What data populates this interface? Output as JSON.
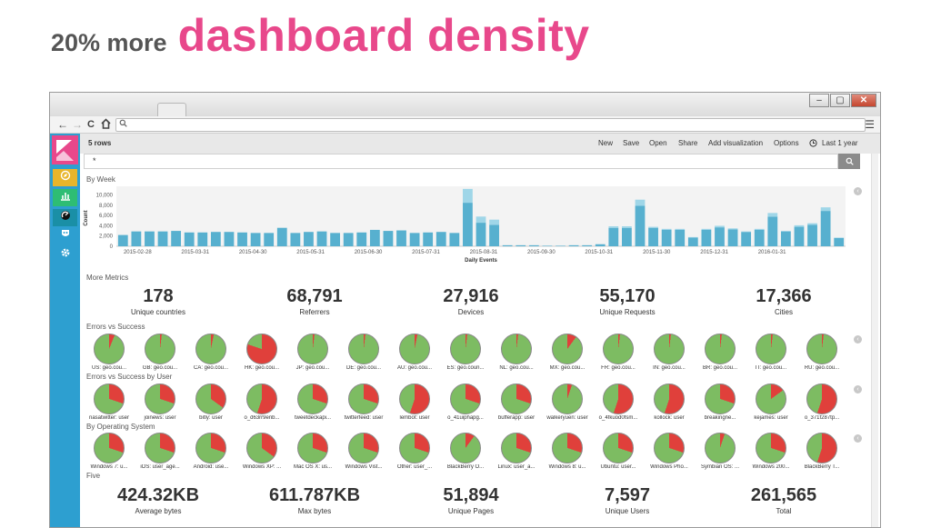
{
  "slide": {
    "lead": "20% more",
    "accent": "dashboard density"
  },
  "window": {
    "min_icon": "–",
    "max_icon": "▢",
    "close_icon": "✕"
  },
  "browser": {
    "back_icon": "←",
    "forward_icon": "→",
    "reload_icon": "C",
    "home_icon": "home-icon",
    "search_icon": "search-icon",
    "menu_icon": "☰"
  },
  "toolbar": {
    "title": "5 rows",
    "menu": [
      "New",
      "Save",
      "Open",
      "Share",
      "Add visualization",
      "Options"
    ],
    "time_icon": "clock-icon",
    "time_label": "Last 1 year"
  },
  "query": {
    "value": "*",
    "search_icon": "search-icon"
  },
  "sections": {
    "by_week": "By Week",
    "more_metrics": "More Metrics",
    "errors_vs_success": "Errors vs Success",
    "errors_by_user": "Errors vs Success by User",
    "by_os": "By Operating System",
    "five": "Five"
  },
  "chart_data": {
    "type": "bar",
    "title": "By Week",
    "xlabel": "Daily Events",
    "ylabel": "Count",
    "ylim": [
      0,
      11000
    ],
    "yticks": [
      "10,000",
      "8,000",
      "6,000",
      "4,000",
      "2,000",
      "0"
    ],
    "xticks": [
      "2015-02-28",
      "2015-03-31",
      "2015-04-30",
      "2015-05-31",
      "2015-06-30",
      "2015-07-31",
      "2015-08-31",
      "2015-09-30",
      "2015-10-31",
      "2015-11-30",
      "2015-12-31",
      "2016-01-31"
    ],
    "colors": {
      "primary": "#57b0cf",
      "secondary": "#9fd6e8"
    },
    "series": [
      {
        "values": [
          2200,
          2900,
          2900,
          2900,
          3000,
          2700,
          2700,
          2800,
          2800,
          2700,
          2600,
          2600,
          3600,
          2600,
          2800,
          2900,
          2600,
          2600,
          2700,
          3200,
          3000,
          3100,
          2600,
          2700,
          2800,
          2600,
          8500,
          4600,
          4200,
          200,
          200,
          200,
          100,
          100,
          200,
          200,
          400,
          3600,
          3600,
          7900,
          3600,
          3200,
          3200,
          1700,
          3200,
          3700,
          3300,
          2800,
          3200,
          5800,
          2900,
          3800,
          4200,
          6900,
          1600
        ]
      },
      {
        "values": [
          0,
          0,
          0,
          0,
          0,
          0,
          0,
          0,
          0,
          0,
          0,
          0,
          0,
          0,
          0,
          0,
          0,
          0,
          0,
          0,
          0,
          0,
          0,
          0,
          0,
          0,
          2700,
          1200,
          1000,
          0,
          0,
          0,
          0,
          0,
          0,
          0,
          0,
          300,
          300,
          1200,
          200,
          200,
          200,
          100,
          200,
          300,
          200,
          100,
          200,
          700,
          100,
          300,
          300,
          700,
          100
        ]
      }
    ]
  },
  "metrics_top": [
    {
      "value": "178",
      "label": "Unique countries"
    },
    {
      "value": "68,791",
      "label": "Referrers"
    },
    {
      "value": "27,916",
      "label": "Devices"
    },
    {
      "value": "55,170",
      "label": "Unique Requests"
    },
    {
      "value": "17,366",
      "label": "Cities"
    }
  ],
  "metrics_bottom": [
    {
      "value": "424.32KB",
      "label": "Average bytes"
    },
    {
      "value": "611.787KB",
      "label": "Max bytes"
    },
    {
      "value": "51,894",
      "label": "Unique Pages"
    },
    {
      "value": "7,597",
      "label": "Unique Users"
    },
    {
      "value": "261,565",
      "label": "Total"
    }
  ],
  "pie_colors": {
    "success": "#7dbc62",
    "error": "#e0403b"
  },
  "pies_country": [
    {
      "label": "US: geo.cou...",
      "error": 0.06
    },
    {
      "label": "GB: geo.cou...",
      "error": 0.02
    },
    {
      "label": "CA: geo.cou...",
      "error": 0.03
    },
    {
      "label": "HK: geo.cou...",
      "error": 0.8
    },
    {
      "label": "JP: geo.cou...",
      "error": 0.02
    },
    {
      "label": "DE: geo.cou...",
      "error": 0.02
    },
    {
      "label": "AU: geo.cou...",
      "error": 0.03
    },
    {
      "label": "ES: geo.coun...",
      "error": 0.02
    },
    {
      "label": "NL: geo.cou...",
      "error": 0.02
    },
    {
      "label": "MX: geo.cou...",
      "error": 0.1
    },
    {
      "label": "FR: geo.cou...",
      "error": 0.02
    },
    {
      "label": "IN: geo.cou...",
      "error": 0.02
    },
    {
      "label": "BR: geo.cou...",
      "error": 0.02
    },
    {
      "label": "IT: geo.cou...",
      "error": 0.02
    },
    {
      "label": "RU: geo.cou...",
      "error": 0.02
    }
  ],
  "pies_user": [
    {
      "label": "nasatwitter: user",
      "error": 0.3
    },
    {
      "label": "joinews: user",
      "error": 0.3
    },
    {
      "label": "bitly: user",
      "error": 0.35
    },
    {
      "label": "o_d63rr9enb...",
      "error": 0.55
    },
    {
      "label": "tweetdeckapi...",
      "error": 0.3
    },
    {
      "label": "twitterfeed: user",
      "error": 0.3
    },
    {
      "label": "lembot: user",
      "error": 0.55
    },
    {
      "label": "o_41uiphapg...",
      "error": 0.3
    },
    {
      "label": "bufferapp: user",
      "error": 0.3
    },
    {
      "label": "walkeryuen: user",
      "error": 0.05
    },
    {
      "label": "o_4fkuod0fsm...",
      "error": 0.55
    },
    {
      "label": "kollock: user",
      "error": 0.55
    },
    {
      "label": "breakingne...",
      "error": 0.3
    },
    {
      "label": "kejames: user",
      "error": 0.15
    },
    {
      "label": "o_371f287tp...",
      "error": 0.55
    }
  ],
  "pies_os": [
    {
      "label": "Windows 7: u...",
      "error": 0.3
    },
    {
      "label": "iOS: user_age...",
      "error": 0.3
    },
    {
      "label": "Android: use...",
      "error": 0.3
    },
    {
      "label": "Windows XP: ...",
      "error": 0.35
    },
    {
      "label": "Mac OS X: us...",
      "error": 0.3
    },
    {
      "label": "Windows Vist...",
      "error": 0.3
    },
    {
      "label": "Other: user_...",
      "error": 0.3
    },
    {
      "label": "BlackBerry O...",
      "error": 0.1
    },
    {
      "label": "Linux: user_a...",
      "error": 0.3
    },
    {
      "label": "Windows 8: u...",
      "error": 0.3
    },
    {
      "label": "Ubuntu: user...",
      "error": 0.3
    },
    {
      "label": "Windows Pho...",
      "error": 0.3
    },
    {
      "label": "Symbian OS: ...",
      "error": 0.05
    },
    {
      "label": "Windows 200...",
      "error": 0.3
    },
    {
      "label": "BlackBerry T...",
      "error": 0.55
    }
  ]
}
